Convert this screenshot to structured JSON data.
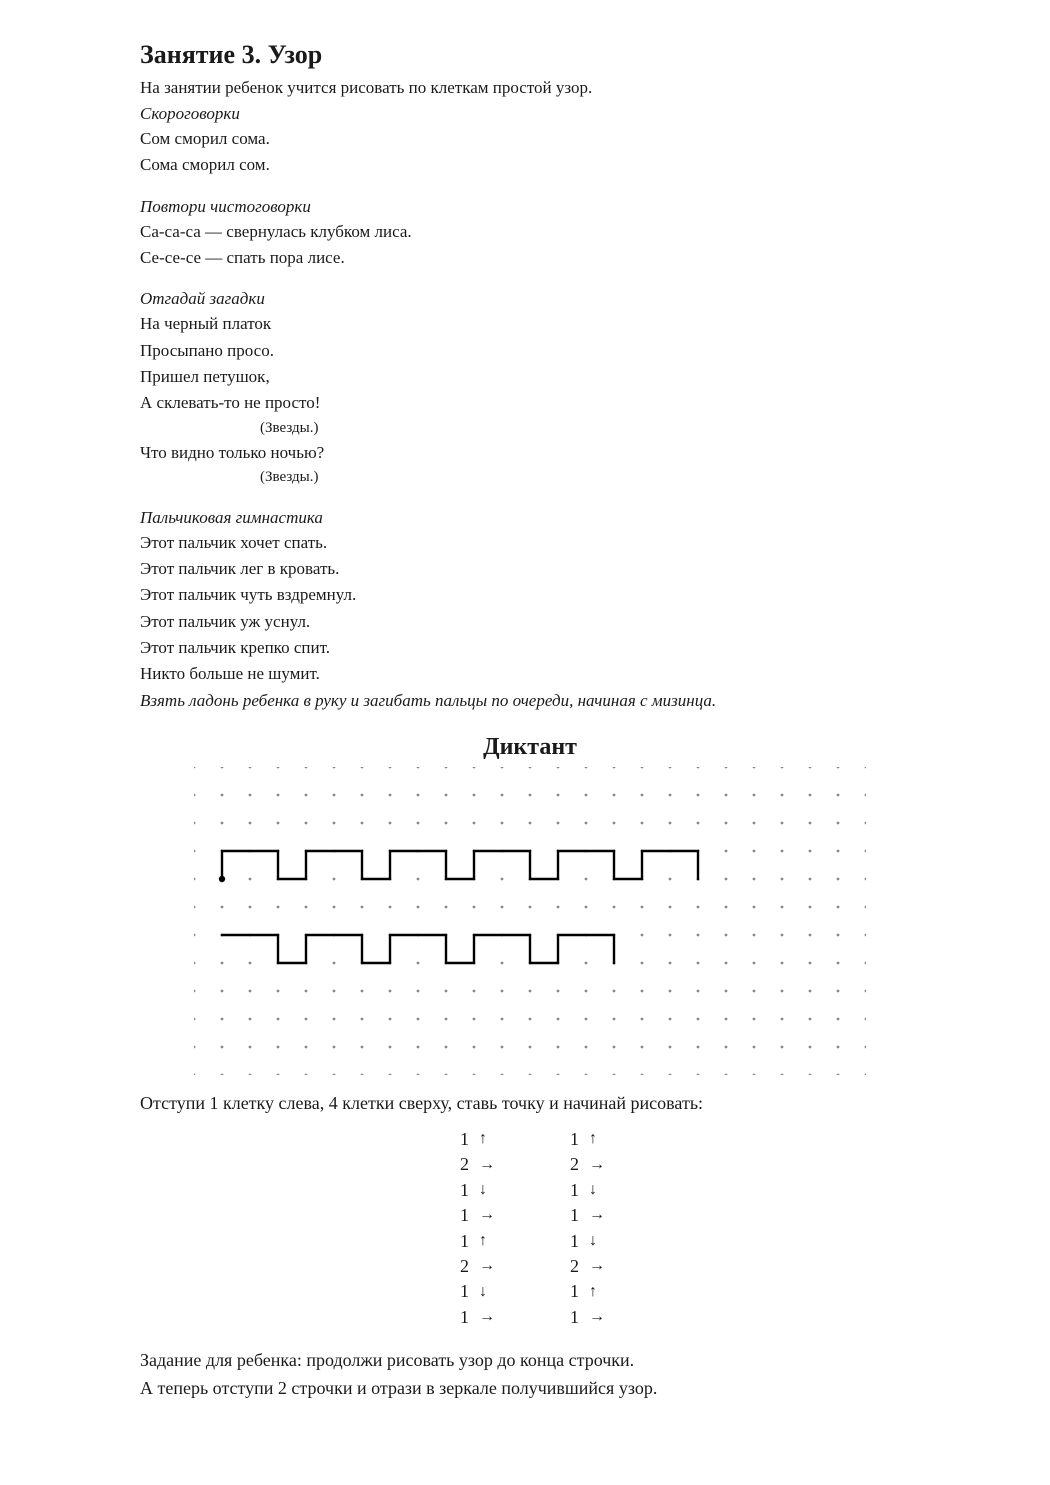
{
  "title": "Занятие 3. Узор",
  "intro": "На занятии ребенок учится рисовать по клеткам простой узор.",
  "section1": {
    "heading": "Скороговорки",
    "lines": [
      "Сом сморил сома.",
      "Сома сморил сом."
    ]
  },
  "section2": {
    "heading": "Повтори чистоговорки",
    "lines": [
      "Са-са-са — свернулась клубком лиса.",
      "Се-се-се — спать пора лисе."
    ]
  },
  "section3": {
    "heading": "Отгадай загадки",
    "lines": [
      "На черный платок",
      "Просыпано просо.",
      "Пришел петушок,",
      "А склевать-то не просто!"
    ],
    "note1": "(Звезды.)",
    "line5": "Что видно только ночью?",
    "note2": "(Звезды.)"
  },
  "section4": {
    "heading": "Пальчиковая гимнастика",
    "lines": [
      "Этот пальчик хочет спать.",
      "Этот пальчик лег в кровать.",
      "Этот пальчик чуть вздремнул.",
      "Этот пальчик уж уснул.",
      "Этот пальчик крепко спит.",
      "Никто больше не шумит."
    ],
    "note": "Взять ладонь ребенка в руку и загибать пальцы по очереди, начиная с мизинца."
  },
  "diktant": {
    "title": "Диктант",
    "grid": {
      "cols": 24,
      "rows": 11,
      "cell": 28,
      "dot_color": "#888888",
      "dot_radius": 1.4,
      "line_color": "#000000",
      "line_width": 2.4,
      "pattern1_start": {
        "col": 1,
        "row": 4
      },
      "pattern1_steps": [
        "U",
        "R",
        "R",
        "D",
        "R",
        "U",
        "R",
        "R",
        "D",
        "R",
        "U",
        "R",
        "R",
        "D",
        "R",
        "U",
        "R",
        "R",
        "D",
        "R",
        "U",
        "R",
        "R",
        "D",
        "R",
        "U",
        "R",
        "R",
        "D"
      ],
      "pattern2_start": {
        "col": 1,
        "row": 6
      },
      "pattern2_steps": [
        "R",
        "R",
        "D",
        "R",
        "U",
        "R",
        "R",
        "D",
        "R",
        "U",
        "R",
        "R",
        "D",
        "R",
        "U",
        "R",
        "R",
        "D",
        "R",
        "U",
        "R",
        "R",
        "D"
      ]
    },
    "instruction": "Отступи 1 клетку слева, 4 клетки сверху, ставь точку и начинай рисовать:",
    "steps_col1": [
      {
        "n": "1",
        "dir": "up"
      },
      {
        "n": "2",
        "dir": "right"
      },
      {
        "n": "1",
        "dir": "down"
      },
      {
        "n": "1",
        "dir": "right"
      },
      {
        "n": "1",
        "dir": "up"
      },
      {
        "n": "2",
        "dir": "right"
      },
      {
        "n": "1",
        "dir": "down"
      },
      {
        "n": "1",
        "dir": "right"
      }
    ],
    "steps_col2": [
      {
        "n": "1",
        "dir": "up"
      },
      {
        "n": "2",
        "dir": "right"
      },
      {
        "n": "1",
        "dir": "down"
      },
      {
        "n": "1",
        "dir": "right"
      },
      {
        "n": "1",
        "dir": "down"
      },
      {
        "n": "2",
        "dir": "right"
      },
      {
        "n": "1",
        "dir": "up"
      },
      {
        "n": "1",
        "dir": "right"
      }
    ],
    "task1": "Задание для ребенка: продолжи рисовать узор до конца строчки.",
    "task2": "А теперь отступи 2 строчки и отрази в зеркале получившийся узор."
  },
  "arrows": {
    "up": "↑",
    "down": "↓",
    "left": "←",
    "right": "→"
  }
}
